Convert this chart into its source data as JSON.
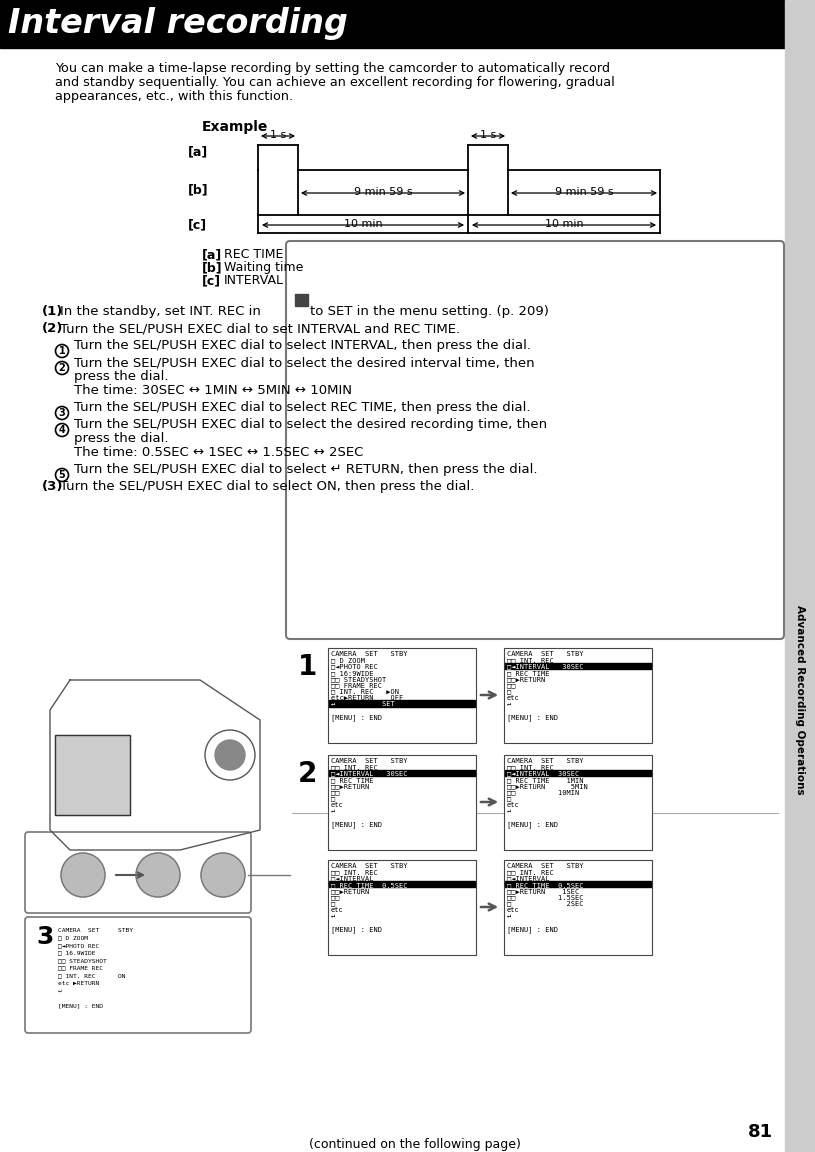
{
  "title": "Interval recording",
  "page_number": "81",
  "side_label": "Advanced Recording Operations",
  "bg_color": "#ffffff",
  "intro_text_line1": "You can make a time-lapse recording by setting the camcorder to automatically record",
  "intro_text_line2": "and standby sequentially. You can achieve an excellent recording for flowering, gradual",
  "intro_text_line3": "appearances, etc., with this function.",
  "example_label": "Example",
  "continued_text": "(continued on the following page)",
  "title_bg": "#000000",
  "title_color": "#ffffff",
  "sidebar_color": "#bbbbbb",
  "outer_box_color": "#888888",
  "screen_bg": "#ffffff",
  "screen_border": "#555555",
  "highlight_color": "#000080",
  "step_num_bg": "#000000",
  "step_num_color": "#ffffff"
}
